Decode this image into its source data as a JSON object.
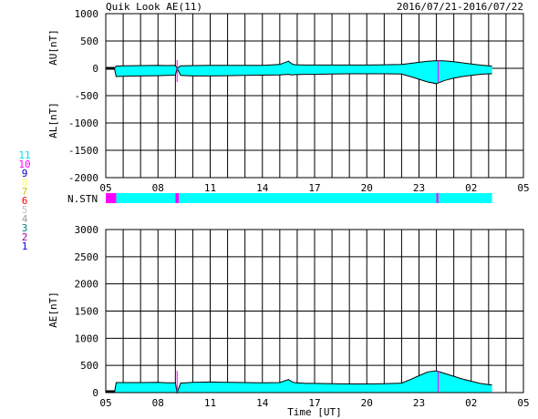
{
  "title": "Quik Look AE(11)",
  "date_range": "2016/07/21-2016/07/22",
  "colors": {
    "fill": "#00ffff",
    "au_al_line": "#000000",
    "marker": "#ff00ff",
    "grid": "#000000"
  },
  "station_legend": [
    {
      "label": "11",
      "color": "#00e0e0"
    },
    {
      "label": "10",
      "color": "#ff00ff"
    },
    {
      "label": "9",
      "color": "#0000cc"
    },
    {
      "label": "8",
      "color": "#ffff66"
    },
    {
      "label": "7",
      "color": "#c8c800"
    },
    {
      "label": "6",
      "color": "#ff0000"
    },
    {
      "label": "5",
      "color": "#c0c0c0"
    },
    {
      "label": "4",
      "color": "#a0a0a0"
    },
    {
      "label": "3",
      "color": "#008080"
    },
    {
      "label": "2",
      "color": "#a000a0"
    },
    {
      "label": "1",
      "color": "#0000ff"
    }
  ],
  "chart_data": [
    {
      "type": "area",
      "panel": "AU/AL",
      "ylabel_upper": "AU[nT]",
      "ylabel_lower": "AL[nT]",
      "x_ticks": [
        "05",
        "08",
        "11",
        "14",
        "17",
        "20",
        "23",
        "02",
        "05"
      ],
      "xlim_hours": [
        5,
        29
      ],
      "ylim": [
        -2000,
        1000
      ],
      "y_ticks": [
        1000,
        500,
        0,
        -500,
        -1000,
        -1500,
        -2000
      ],
      "grid": true,
      "series": [
        {
          "name": "AU",
          "x": [
            5.5,
            5.6,
            6,
            7,
            8,
            8.5,
            9,
            9.1,
            9.3,
            10,
            11,
            12,
            13,
            14,
            15,
            15.5,
            15.7,
            15.9,
            16.5,
            17,
            18,
            19,
            20,
            21,
            22,
            22.5,
            23,
            23.5,
            24,
            24.5,
            25,
            25.5,
            26,
            26.5,
            27,
            27.2
          ],
          "values": [
            0,
            40,
            45,
            50,
            55,
            50,
            55,
            0,
            45,
            50,
            55,
            55,
            55,
            55,
            70,
            130,
            80,
            65,
            60,
            60,
            60,
            60,
            60,
            65,
            70,
            90,
            110,
            130,
            140,
            135,
            120,
            100,
            80,
            60,
            45,
            40
          ]
        },
        {
          "name": "AL",
          "x": [
            5.5,
            5.6,
            6,
            7,
            8,
            8.5,
            9,
            9.1,
            9.3,
            10,
            11,
            12,
            13,
            14,
            15,
            15.5,
            15.7,
            15.9,
            16.5,
            17,
            18,
            19,
            20,
            21,
            22,
            22.5,
            23,
            23.5,
            24,
            24.5,
            25,
            25.5,
            26,
            26.5,
            27,
            27.2
          ],
          "values": [
            0,
            -150,
            -145,
            -140,
            -135,
            -130,
            -125,
            0,
            -130,
            -140,
            -140,
            -135,
            -130,
            -125,
            -120,
            -110,
            -120,
            -115,
            -110,
            -110,
            -105,
            -100,
            -100,
            -100,
            -105,
            -150,
            -200,
            -250,
            -280,
            -220,
            -180,
            -150,
            -130,
            -110,
            -100,
            -100
          ]
        }
      ],
      "markers_hours": [
        9.1,
        24.1
      ]
    },
    {
      "type": "bar",
      "panel": "station-count",
      "label": "N.STN",
      "segments": [
        {
          "start": 5,
          "end": 5.6,
          "color": "#ff00ff"
        },
        {
          "start": 5.6,
          "end": 9.0,
          "color": "#00ffff"
        },
        {
          "start": 9.0,
          "end": 9.2,
          "color": "#ff00ff"
        },
        {
          "start": 9.2,
          "end": 24.0,
          "color": "#00ffff"
        },
        {
          "start": 24.0,
          "end": 24.12,
          "color": "#ff00ff"
        },
        {
          "start": 24.12,
          "end": 27.2,
          "color": "#00ffff"
        }
      ]
    },
    {
      "type": "area",
      "panel": "AE",
      "ylabel": "AE[nT]",
      "xlabel": "Time [UT]",
      "x_ticks": [
        "05",
        "08",
        "11",
        "14",
        "17",
        "20",
        "23",
        "02",
        "05"
      ],
      "xlim_hours": [
        5,
        29
      ],
      "ylim": [
        0,
        3000
      ],
      "y_ticks": [
        3000,
        2500,
        2000,
        1500,
        1000,
        500,
        0
      ],
      "grid": true,
      "series": [
        {
          "name": "AE",
          "x": [
            5.5,
            5.6,
            6,
            7,
            8,
            8.5,
            9,
            9.1,
            9.3,
            10,
            11,
            12,
            13,
            14,
            15,
            15.5,
            15.7,
            15.9,
            16.5,
            17,
            18,
            19,
            20,
            21,
            22,
            22.5,
            23,
            23.5,
            24,
            24.5,
            25,
            25.5,
            26,
            26.5,
            27,
            27.2
          ],
          "values": [
            0,
            185,
            185,
            185,
            190,
            180,
            180,
            0,
            175,
            190,
            195,
            190,
            185,
            180,
            185,
            240,
            200,
            180,
            170,
            170,
            165,
            160,
            160,
            165,
            175,
            240,
            310,
            380,
            400,
            350,
            300,
            250,
            210,
            170,
            145,
            140
          ]
        }
      ],
      "markers_hours": [
        9.1,
        24.1
      ]
    }
  ]
}
